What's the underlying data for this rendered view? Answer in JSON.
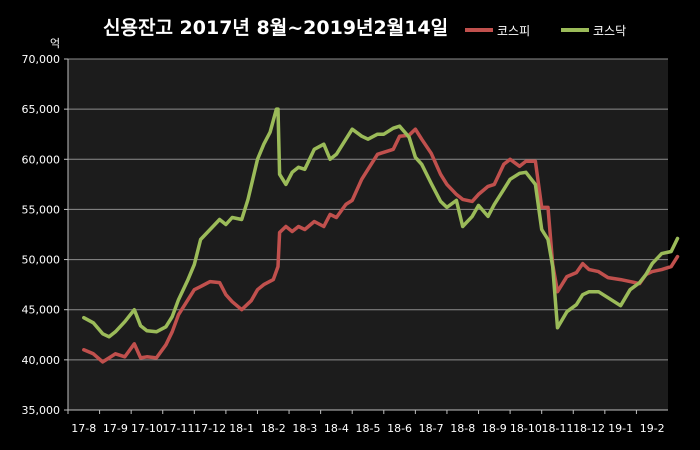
{
  "chart_data": {
    "type": "line",
    "title": "신용잔고 2017년 8월~2019년2월14일",
    "unit_label": "억",
    "xlabel": "",
    "ylabel": "",
    "ylim": [
      35000,
      70000
    ],
    "yticks": [
      35000,
      40000,
      45000,
      50000,
      55000,
      60000,
      65000,
      70000
    ],
    "ytick_labels": [
      "35,000",
      "40,000",
      "45,000",
      "50,000",
      "55,000",
      "60,000",
      "65,000",
      "70,000"
    ],
    "categories": [
      "17-8",
      "17-9",
      "17-10",
      "17-11",
      "17-12",
      "18-1",
      "18-2",
      "18-3",
      "18-4",
      "18-5",
      "18-6",
      "18-7",
      "18-8",
      "18-9",
      "18-10",
      "18-11",
      "18-12",
      "19-1",
      "19-2"
    ],
    "grid": true,
    "legend_position": "top-right",
    "series": [
      {
        "name": "코스피",
        "color": "#c0504d",
        "x": [
          0,
          0.3,
          0.6,
          0.8,
          1.0,
          1.3,
          1.6,
          1.8,
          2.0,
          2.3,
          2.6,
          2.8,
          3.0,
          3.3,
          3.5,
          3.7,
          4.0,
          4.3,
          4.5,
          4.7,
          5.0,
          5.3,
          5.5,
          5.7,
          6.0,
          6.15,
          6.2,
          6.4,
          6.6,
          6.8,
          7.0,
          7.3,
          7.6,
          7.8,
          8.0,
          8.3,
          8.5,
          8.8,
          9.0,
          9.3,
          9.5,
          9.8,
          10.0,
          10.3,
          10.5,
          10.7,
          11.0,
          11.3,
          11.5,
          11.8,
          12.0,
          12.3,
          12.5,
          12.8,
          13.0,
          13.3,
          13.5,
          13.8,
          14.0,
          14.3,
          14.5,
          14.7,
          14.85,
          15.0,
          15.3,
          15.6,
          15.8,
          16.0,
          16.3,
          16.6,
          17.0,
          17.3,
          17.6,
          17.8,
          18.0,
          18.3,
          18.6,
          18.8
        ],
        "values": [
          41000,
          40600,
          39800,
          40200,
          40600,
          40300,
          41600,
          40200,
          40300,
          40200,
          41500,
          42800,
          44500,
          46000,
          47000,
          47300,
          47800,
          47700,
          46500,
          45800,
          45000,
          45900,
          47000,
          47500,
          48000,
          49300,
          52700,
          53300,
          52800,
          53300,
          53000,
          53800,
          53300,
          54500,
          54200,
          55500,
          55900,
          58000,
          59000,
          60500,
          60700,
          61000,
          62300,
          62400,
          63000,
          62000,
          60600,
          58500,
          57500,
          56500,
          56000,
          55800,
          56500,
          57300,
          57500,
          59500,
          60000,
          59300,
          59800,
          59800,
          55200,
          55200,
          49500,
          46800,
          48300,
          48700,
          49600,
          49000,
          48800,
          48200,
          48000,
          47800,
          47600,
          48500,
          48800,
          49000,
          49300,
          50300
        ]
      },
      {
        "name": "코스닥",
        "color": "#9bbb59",
        "x": [
          0,
          0.3,
          0.6,
          0.8,
          1.0,
          1.3,
          1.6,
          1.8,
          2.0,
          2.3,
          2.6,
          2.8,
          3.0,
          3.3,
          3.5,
          3.7,
          4.0,
          4.3,
          4.5,
          4.7,
          5.0,
          5.2,
          5.5,
          5.7,
          5.9,
          6.1,
          6.15,
          6.2,
          6.4,
          6.6,
          6.8,
          7.0,
          7.3,
          7.6,
          7.8,
          8.0,
          8.3,
          8.5,
          8.8,
          9.0,
          9.3,
          9.5,
          9.8,
          10.0,
          10.3,
          10.5,
          10.7,
          11.0,
          11.3,
          11.5,
          11.8,
          12.0,
          12.3,
          12.5,
          12.8,
          13.0,
          13.3,
          13.5,
          13.8,
          14.0,
          14.3,
          14.5,
          14.7,
          14.85,
          15.0,
          15.3,
          15.6,
          15.8,
          16.0,
          16.3,
          16.6,
          17.0,
          17.3,
          17.6,
          17.8,
          18.0,
          18.3,
          18.6,
          18.8
        ],
        "values": [
          44200,
          43700,
          42600,
          42300,
          42800,
          43800,
          45000,
          43400,
          42900,
          42800,
          43300,
          44300,
          46000,
          48000,
          49500,
          52000,
          53000,
          54000,
          53500,
          54200,
          54000,
          56000,
          60000,
          61500,
          62700,
          65000,
          65000,
          58500,
          57500,
          58700,
          59200,
          59000,
          61000,
          61500,
          60000,
          60500,
          62000,
          63000,
          62300,
          62000,
          62500,
          62500,
          63100,
          63300,
          62200,
          60200,
          59500,
          57600,
          55800,
          55200,
          55900,
          53300,
          54300,
          55400,
          54300,
          55500,
          57000,
          58000,
          58600,
          58700,
          57500,
          53000,
          52000,
          49300,
          43200,
          44800,
          45500,
          46500,
          46800,
          46800,
          46200,
          45400,
          47000,
          47700,
          48500,
          49600,
          50600,
          50800,
          52100
        ]
      }
    ]
  }
}
